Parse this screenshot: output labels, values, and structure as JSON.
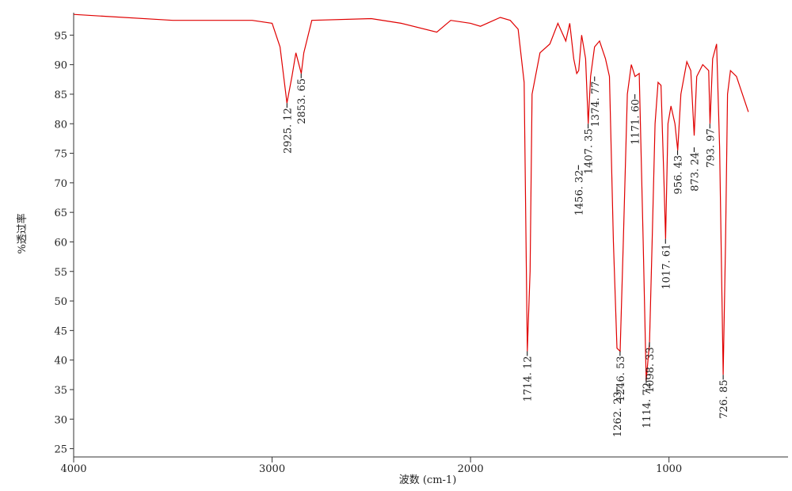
{
  "chart_data": {
    "type": "line",
    "x_label": "波数 (cm-1)",
    "y_label": "%透过率",
    "xlim": [
      4000,
      400
    ],
    "ylim": [
      23.6,
      98.8
    ],
    "xticks": [
      4000,
      3000,
      2000,
      1000
    ],
    "yticks": [
      25,
      30,
      35,
      40,
      45,
      50,
      55,
      60,
      65,
      70,
      75,
      80,
      85,
      90,
      95
    ],
    "grid": false,
    "series": [
      {
        "color": "#e00000",
        "x": [
          4000,
          3500,
          3100,
          3000,
          2960,
          2925,
          2900,
          2880,
          2853,
          2840,
          2800,
          2500,
          2350,
          2170,
          2100,
          2000,
          1950,
          1850,
          1800,
          1760,
          1730,
          1714,
          1700,
          1690,
          1650,
          1600,
          1560,
          1520,
          1500,
          1480,
          1465,
          1455,
          1440,
          1420,
          1407,
          1395,
          1375,
          1350,
          1320,
          1300,
          1280,
          1262,
          1246,
          1230,
          1210,
          1190,
          1171,
          1150,
          1130,
          1115,
          1098,
          1085,
          1070,
          1055,
          1040,
          1025,
          1017,
          1005,
          990,
          970,
          956,
          940,
          910,
          890,
          873,
          860,
          830,
          800,
          793,
          780,
          760,
          745,
          727,
          715,
          705,
          690,
          660,
          630,
          600
        ],
        "values": [
          98.5,
          97.5,
          97.5,
          97,
          93,
          83.5,
          88,
          92,
          88.5,
          92,
          97.5,
          97.8,
          97,
          95.5,
          97.5,
          97,
          96.5,
          98,
          97.5,
          96,
          87,
          41.5,
          55,
          85,
          92,
          93.5,
          97,
          94,
          97,
          91,
          88.5,
          89,
          95,
          91,
          80,
          88,
          93,
          94,
          91,
          88,
          60,
          42,
          41.5,
          60,
          85,
          90,
          88,
          88.5,
          60,
          36.5,
          43,
          60,
          80,
          87,
          86.5,
          70,
          60.5,
          80,
          83,
          80,
          75.5,
          85,
          90.5,
          89,
          78,
          88,
          90,
          89,
          80,
          91,
          93.5,
          76,
          37.5,
          60,
          85,
          89,
          88,
          85,
          82
        ]
      }
    ],
    "annotations": [
      {
        "x": 2925.12,
        "y": 83.5,
        "label": "2925. 12"
      },
      {
        "x": 2853.65,
        "y": 88.5,
        "label": "2853. 65"
      },
      {
        "x": 1714.12,
        "y": 41.5,
        "label": "1714. 12"
      },
      {
        "x": 1456.32,
        "y": 73,
        "label": "1456. 32"
      },
      {
        "x": 1407.35,
        "y": 80,
        "label": "1407. 35"
      },
      {
        "x": 1374.77,
        "y": 88,
        "label": "1374. 77"
      },
      {
        "x": 1262.23,
        "y": 35.5,
        "label": "1262. 23"
      },
      {
        "x": 1246.53,
        "y": 41.5,
        "label": "1246. 53"
      },
      {
        "x": 1171.6,
        "y": 85,
        "label": "1171. 60"
      },
      {
        "x": 1114.72,
        "y": 37,
        "label": "1114. 72"
      },
      {
        "x": 1098.33,
        "y": 43,
        "label": "1098. 33"
      },
      {
        "x": 1017.61,
        "y": 60.5,
        "label": "1017. 61"
      },
      {
        "x": 956.43,
        "y": 75.5,
        "label": "956. 43"
      },
      {
        "x": 873.24,
        "y": 76,
        "label": "873. 24"
      },
      {
        "x": 793.97,
        "y": 80,
        "label": "793. 97"
      },
      {
        "x": 726.85,
        "y": 37.5,
        "label": "726. 85"
      }
    ]
  }
}
